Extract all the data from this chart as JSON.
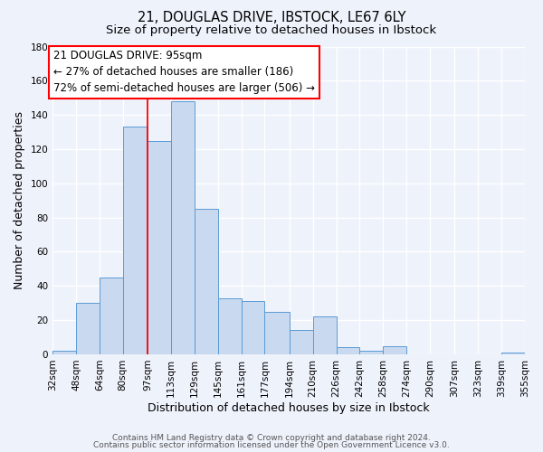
{
  "title": "21, DOUGLAS DRIVE, IBSTOCK, LE67 6LY",
  "subtitle": "Size of property relative to detached houses in Ibstock",
  "xlabel": "Distribution of detached houses by size in Ibstock",
  "ylabel": "Number of detached properties",
  "bin_edges": [
    32,
    48,
    64,
    80,
    97,
    113,
    129,
    145,
    161,
    177,
    194,
    210,
    226,
    242,
    258,
    274,
    290,
    307,
    323,
    339,
    355
  ],
  "bar_heights": [
    2,
    30,
    45,
    133,
    125,
    148,
    85,
    33,
    31,
    25,
    14,
    22,
    4,
    2,
    5,
    0,
    0,
    0,
    0,
    1
  ],
  "bar_color": "#c9d9f0",
  "bar_edge_color": "#5b9bd5",
  "ylim": [
    0,
    180
  ],
  "yticks": [
    0,
    20,
    40,
    60,
    80,
    100,
    120,
    140,
    160,
    180
  ],
  "xtick_labels": [
    "32sqm",
    "48sqm",
    "64sqm",
    "80sqm",
    "97sqm",
    "113sqm",
    "129sqm",
    "145sqm",
    "161sqm",
    "177sqm",
    "194sqm",
    "210sqm",
    "226sqm",
    "242sqm",
    "258sqm",
    "274sqm",
    "290sqm",
    "307sqm",
    "323sqm",
    "339sqm",
    "355sqm"
  ],
  "property_line_x": 97,
  "annotation_title": "21 DOUGLAS DRIVE: 95sqm",
  "annotation_line1": "← 27% of detached houses are smaller (186)",
  "annotation_line2": "72% of semi-detached houses are larger (506) →",
  "footer_line1": "Contains HM Land Registry data © Crown copyright and database right 2024.",
  "footer_line2": "Contains public sector information licensed under the Open Government Licence v3.0.",
  "background_color": "#eef2fb",
  "grid_color": "#ffffff",
  "title_fontsize": 10.5,
  "subtitle_fontsize": 9.5,
  "axis_label_fontsize": 9,
  "tick_fontsize": 7.5,
  "annotation_fontsize": 8.5,
  "footer_fontsize": 6.5
}
